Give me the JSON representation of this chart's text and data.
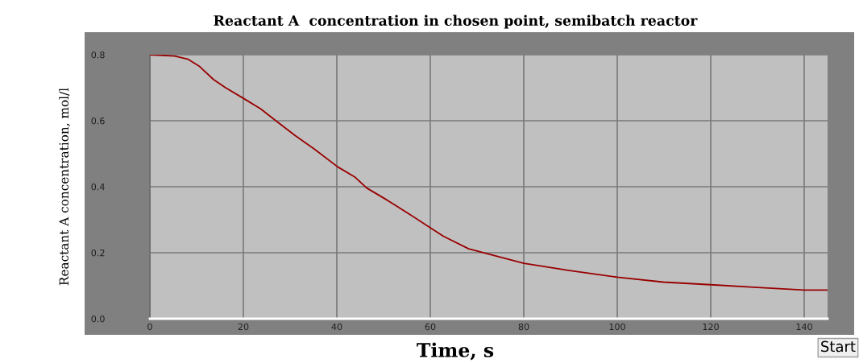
{
  "chart_data": {
    "type": "line",
    "title": "Reactant A  concentration in chosen point, semibatch reactor",
    "xlabel": "Time, s",
    "ylabel": "Reactant A concentration, mol/l",
    "x": [
      0,
      5.3,
      8.2,
      10.5,
      13.6,
      16.2,
      20,
      23.7,
      27.4,
      31.1,
      35.2,
      40.2,
      43.8,
      46.4,
      50.7,
      55.3,
      60.2,
      62.8,
      68.2,
      80,
      89.8,
      100,
      109.9,
      120,
      130,
      140,
      145
    ],
    "series": [
      {
        "color": "#990000",
        "values": [
          0.8,
          0.796,
          0.786,
          0.766,
          0.725,
          0.7,
          0.668,
          0.636,
          0.595,
          0.555,
          0.514,
          0.46,
          0.43,
          0.396,
          0.36,
          0.319,
          0.274,
          0.25,
          0.212,
          0.168,
          0.146,
          0.126,
          0.111,
          0.103,
          0.095,
          0.087,
          0.087
        ]
      }
    ],
    "xlim": [
      0,
      145
    ],
    "ylim": [
      0,
      0.8
    ],
    "xticks": [
      0,
      20,
      40,
      60,
      80,
      100,
      120,
      140
    ],
    "yticks": [
      {
        "value": 0,
        "label": "0.0"
      },
      {
        "value": 0.2,
        "label": "0.2"
      },
      {
        "value": 0.4,
        "label": "0.4"
      },
      {
        "value": 0.6,
        "label": "0.6"
      },
      {
        "value": 0.8,
        "label": "0.8"
      }
    ],
    "grid": true,
    "marker": "none",
    "line_style": "solid",
    "legend": false,
    "annotations": [
      "Start"
    ]
  }
}
